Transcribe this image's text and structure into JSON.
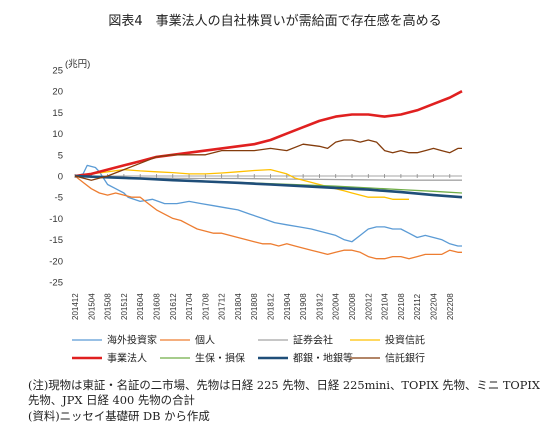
{
  "title": "図表4　事業法人の自社株買いが需給面で存在感を高める",
  "notes": [
    "(注)現物は東証・名証の二市場、先物は日経 225 先物、日経 225mini、TOPIX 先物、ミニ TOPIX 先物、JPX 日経 400 先物の合計",
    "(資料)ニッセイ基礎研 DB から作成"
  ],
  "chart_data": {
    "type": "line",
    "ylabel": "(兆円)",
    "ylim": [
      -25,
      25
    ],
    "yticks": [
      25,
      20,
      15,
      10,
      5,
      0,
      -5,
      -10,
      -15,
      -20,
      -25
    ],
    "x_tick_labels": [
      "201412",
      "201504",
      "201508",
      "201512",
      "201604",
      "201608",
      "201612",
      "201704",
      "201708",
      "201712",
      "201804",
      "201808",
      "201812",
      "201904",
      "201908",
      "201912",
      "202004",
      "202008",
      "202012",
      "202104",
      "202108",
      "202112",
      "202204",
      "202208"
    ],
    "x_range": [
      0,
      95
    ],
    "legend_placement": "bottom",
    "grid": false,
    "series": [
      {
        "name": "海外投資家",
        "color": "#5b9bd5",
        "width": 1.3,
        "points": [
          [
            0,
            0
          ],
          [
            2,
            0.5
          ],
          [
            3,
            2.5
          ],
          [
            5,
            2
          ],
          [
            6,
            1
          ],
          [
            8,
            -2
          ],
          [
            10,
            -3
          ],
          [
            12,
            -4
          ],
          [
            13,
            -5
          ],
          [
            16,
            -6
          ],
          [
            19,
            -5.5
          ],
          [
            22,
            -6.5
          ],
          [
            25,
            -6.5
          ],
          [
            28,
            -6
          ],
          [
            31,
            -6.5
          ],
          [
            34,
            -7
          ],
          [
            37,
            -7.5
          ],
          [
            40,
            -8
          ],
          [
            43,
            -9
          ],
          [
            46,
            -10
          ],
          [
            49,
            -11
          ],
          [
            52,
            -11.5
          ],
          [
            55,
            -12
          ],
          [
            58,
            -12.5
          ],
          [
            60,
            -13
          ],
          [
            62,
            -13.5
          ],
          [
            64,
            -14
          ],
          [
            66,
            -15
          ],
          [
            68,
            -15.5
          ],
          [
            70,
            -14
          ],
          [
            72,
            -12.5
          ],
          [
            74,
            -12
          ],
          [
            76,
            -12
          ],
          [
            78,
            -12.5
          ],
          [
            80,
            -12.5
          ],
          [
            82,
            -13.5
          ],
          [
            84,
            -14.5
          ],
          [
            86,
            -14
          ],
          [
            88,
            -14.5
          ],
          [
            90,
            -15
          ],
          [
            92,
            -16
          ],
          [
            94,
            -16.5
          ],
          [
            95,
            -16.5
          ]
        ]
      },
      {
        "name": "個人",
        "color": "#ed7d31",
        "width": 1.3,
        "points": [
          [
            0,
            0
          ],
          [
            2,
            -1.5
          ],
          [
            4,
            -3
          ],
          [
            6,
            -4
          ],
          [
            8,
            -4.5
          ],
          [
            10,
            -4
          ],
          [
            12,
            -4.5
          ],
          [
            14,
            -5
          ],
          [
            16,
            -5
          ],
          [
            18,
            -6.5
          ],
          [
            20,
            -8
          ],
          [
            22,
            -9
          ],
          [
            24,
            -10
          ],
          [
            26,
            -10.5
          ],
          [
            28,
            -11.5
          ],
          [
            30,
            -12.5
          ],
          [
            32,
            -13
          ],
          [
            34,
            -13.5
          ],
          [
            36,
            -13.5
          ],
          [
            38,
            -14
          ],
          [
            40,
            -14.5
          ],
          [
            42,
            -15
          ],
          [
            44,
            -15.5
          ],
          [
            46,
            -16
          ],
          [
            48,
            -16
          ],
          [
            50,
            -16.5
          ],
          [
            52,
            -16
          ],
          [
            54,
            -16.5
          ],
          [
            56,
            -17
          ],
          [
            58,
            -17.5
          ],
          [
            60,
            -18
          ],
          [
            62,
            -18.5
          ],
          [
            64,
            -18
          ],
          [
            66,
            -17.5
          ],
          [
            68,
            -17.5
          ],
          [
            70,
            -18
          ],
          [
            72,
            -19
          ],
          [
            74,
            -19.5
          ],
          [
            76,
            -19.5
          ],
          [
            78,
            -19
          ],
          [
            80,
            -19
          ],
          [
            82,
            -19.5
          ],
          [
            84,
            -19
          ],
          [
            86,
            -18.5
          ],
          [
            88,
            -18.5
          ],
          [
            90,
            -18.5
          ],
          [
            92,
            -17.5
          ],
          [
            94,
            -18
          ],
          [
            95,
            -18
          ]
        ]
      },
      {
        "name": "証券会社",
        "color": "#a5a5a5",
        "width": 1.3,
        "points": [
          [
            0,
            0
          ],
          [
            10,
            -0.3
          ],
          [
            20,
            -0.5
          ],
          [
            30,
            -0.6
          ],
          [
            40,
            -0.6
          ],
          [
            50,
            -0.7
          ],
          [
            60,
            -0.8
          ],
          [
            70,
            -0.9
          ],
          [
            80,
            -1
          ],
          [
            90,
            -1
          ],
          [
            95,
            -1
          ]
        ]
      },
      {
        "name": "投資信託",
        "color": "#ffc000",
        "width": 1.3,
        "points": [
          [
            0,
            0
          ],
          [
            4,
            0.5
          ],
          [
            8,
            1
          ],
          [
            12,
            1.5
          ],
          [
            16,
            1.2
          ],
          [
            20,
            1
          ],
          [
            24,
            0.8
          ],
          [
            28,
            0.5
          ],
          [
            32,
            0.5
          ],
          [
            36,
            0.7
          ],
          [
            40,
            1
          ],
          [
            44,
            1.3
          ],
          [
            48,
            1.5
          ],
          [
            50,
            1
          ],
          [
            52,
            0.5
          ],
          [
            54,
            -0.5
          ],
          [
            56,
            -1
          ],
          [
            58,
            -1.5
          ],
          [
            60,
            -2
          ],
          [
            62,
            -2.5
          ],
          [
            64,
            -3
          ],
          [
            66,
            -3.5
          ],
          [
            68,
            -4
          ],
          [
            70,
            -4.5
          ],
          [
            72,
            -5
          ],
          [
            74,
            -5
          ],
          [
            76,
            -5
          ],
          [
            78,
            -5.5
          ],
          [
            80,
            -5.5
          ],
          [
            82,
            -5.5
          ]
        ]
      },
      {
        "name": "事業法人",
        "color": "#e02020",
        "width": 2.6,
        "points": [
          [
            0,
            0
          ],
          [
            4,
            0.5
          ],
          [
            8,
            1.5
          ],
          [
            12,
            2.5
          ],
          [
            16,
            3.5
          ],
          [
            20,
            4.5
          ],
          [
            24,
            5
          ],
          [
            28,
            5.5
          ],
          [
            32,
            6
          ],
          [
            36,
            6.5
          ],
          [
            40,
            7
          ],
          [
            44,
            7.5
          ],
          [
            48,
            8.5
          ],
          [
            52,
            10
          ],
          [
            56,
            11.5
          ],
          [
            60,
            13
          ],
          [
            64,
            14
          ],
          [
            68,
            14.5
          ],
          [
            72,
            14.5
          ],
          [
            76,
            14
          ],
          [
            80,
            14.5
          ],
          [
            84,
            15.5
          ],
          [
            88,
            17
          ],
          [
            92,
            18.5
          ],
          [
            95,
            20
          ]
        ]
      },
      {
        "name": "生保・損保",
        "color": "#70ad47",
        "width": 1.3,
        "points": [
          [
            0,
            0
          ],
          [
            8,
            -0.3
          ],
          [
            16,
            -0.6
          ],
          [
            24,
            -0.9
          ],
          [
            32,
            -1.2
          ],
          [
            40,
            -1.5
          ],
          [
            48,
            -1.8
          ],
          [
            56,
            -2.1
          ],
          [
            64,
            -2.4
          ],
          [
            72,
            -2.8
          ],
          [
            80,
            -3.2
          ],
          [
            88,
            -3.6
          ],
          [
            95,
            -4
          ]
        ]
      },
      {
        "name": "都銀・地銀等",
        "color": "#1f4e79",
        "width": 2.6,
        "points": [
          [
            0,
            0
          ],
          [
            8,
            -0.3
          ],
          [
            16,
            -0.6
          ],
          [
            24,
            -1
          ],
          [
            32,
            -1.3
          ],
          [
            40,
            -1.6
          ],
          [
            48,
            -2
          ],
          [
            56,
            -2.4
          ],
          [
            64,
            -2.8
          ],
          [
            72,
            -3.2
          ],
          [
            80,
            -3.8
          ],
          [
            88,
            -4.5
          ],
          [
            95,
            -5
          ]
        ]
      },
      {
        "name": "信託銀行",
        "color": "#843c0c",
        "width": 1.3,
        "points": [
          [
            0,
            0
          ],
          [
            4,
            -1
          ],
          [
            8,
            0
          ],
          [
            12,
            1.5
          ],
          [
            16,
            3
          ],
          [
            20,
            4.5
          ],
          [
            24,
            5
          ],
          [
            28,
            5
          ],
          [
            32,
            5
          ],
          [
            36,
            6
          ],
          [
            40,
            6
          ],
          [
            44,
            6
          ],
          [
            48,
            6.5
          ],
          [
            52,
            6
          ],
          [
            56,
            7.5
          ],
          [
            60,
            7
          ],
          [
            62,
            6.5
          ],
          [
            64,
            8
          ],
          [
            66,
            8.5
          ],
          [
            68,
            8.5
          ],
          [
            70,
            8
          ],
          [
            72,
            8.5
          ],
          [
            74,
            8
          ],
          [
            76,
            6
          ],
          [
            78,
            5.5
          ],
          [
            80,
            6
          ],
          [
            82,
            5.5
          ],
          [
            84,
            5.5
          ],
          [
            86,
            6
          ],
          [
            88,
            6.5
          ],
          [
            90,
            6
          ],
          [
            92,
            5.5
          ],
          [
            94,
            6.5
          ],
          [
            95,
            6.5
          ]
        ]
      }
    ]
  }
}
